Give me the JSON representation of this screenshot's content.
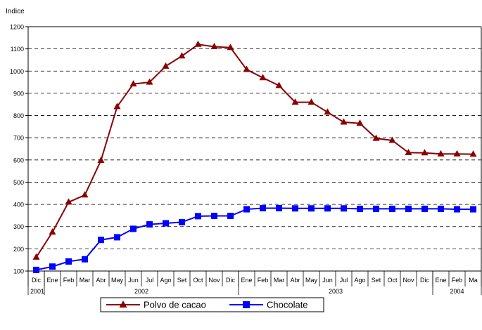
{
  "chart_data": {
    "type": "line",
    "title": "",
    "ylabel": "Indice",
    "xlabel": "",
    "ylim": [
      100,
      1200
    ],
    "yticks": [
      100,
      200,
      300,
      400,
      500,
      600,
      700,
      800,
      900,
      1000,
      1100,
      1200
    ],
    "grid": "horizontal-dashed",
    "legend_position": "bottom",
    "categories": [
      "Dic",
      "Ene",
      "Feb",
      "Mar",
      "Abr",
      "May",
      "Jun",
      "Jul",
      "Ago",
      "Set",
      "Oct",
      "Nov",
      "Dic",
      "Ene",
      "Feb",
      "Mar",
      "Abr",
      "May",
      "Jun",
      "Jul",
      "Ago",
      "Set",
      "Oct",
      "Nov",
      "Dic",
      "Ene",
      "Feb",
      "Ma"
    ],
    "year_groups": [
      {
        "label": "2001",
        "start": 0,
        "end": 0
      },
      {
        "label": "2002",
        "start": 1,
        "end": 12
      },
      {
        "label": "2003",
        "start": 13,
        "end": 24
      },
      {
        "label": "2004",
        "start": 25,
        "end": 27
      }
    ],
    "series": [
      {
        "name": "Polvo de cacao",
        "color": "#8b0000",
        "marker": "triangle",
        "values": [
          162,
          275,
          410,
          442,
          598,
          840,
          942,
          950,
          1022,
          1068,
          1120,
          1110,
          1106,
          1007,
          970,
          935,
          860,
          860,
          815,
          770,
          765,
          697,
          688,
          633,
          632,
          627,
          627,
          626
        ]
      },
      {
        "name": "Chocolate",
        "color": "#0000ff",
        "marker": "square",
        "values": [
          105,
          120,
          143,
          153,
          240,
          252,
          290,
          310,
          315,
          320,
          347,
          348,
          348,
          378,
          383,
          383,
          382,
          382,
          382,
          382,
          380,
          380,
          380,
          380,
          380,
          380,
          378,
          378
        ]
      }
    ]
  }
}
